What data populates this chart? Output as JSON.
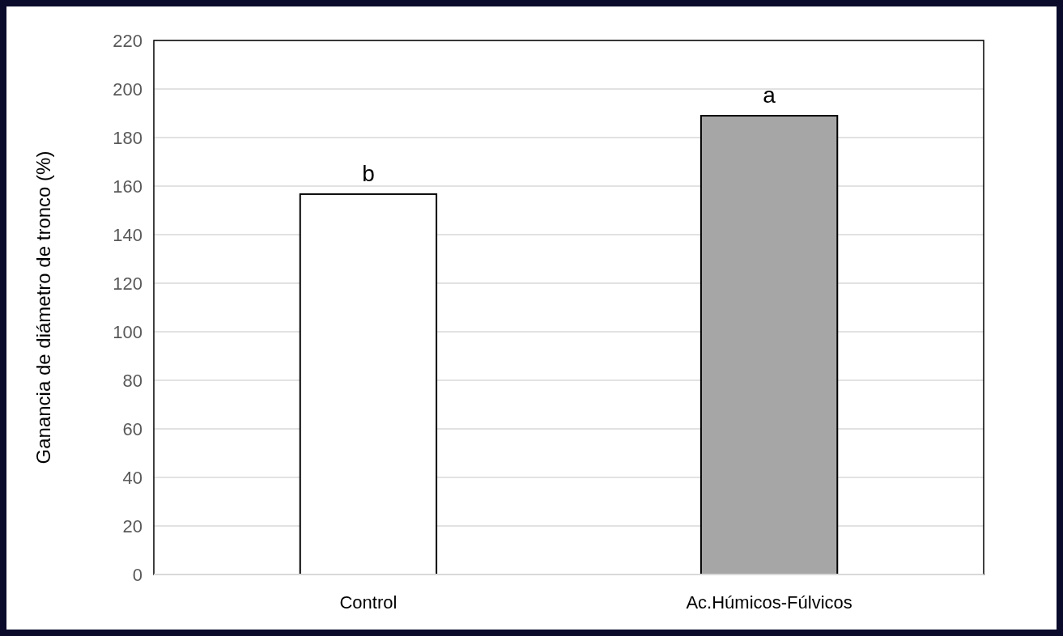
{
  "chart_data": {
    "type": "bar",
    "ylabel": "Ganancia de diámetro de tronco (%)",
    "categories": [
      "Control",
      "Ac.Húmicos-Fúlvicos"
    ],
    "values": [
      156.7,
      189
    ],
    "colors": [
      "#ffffff",
      "#a6a6a6"
    ],
    "ylim": [
      0,
      220
    ],
    "yticks": [
      0,
      20,
      40,
      60,
      80,
      100,
      120,
      140,
      160,
      180,
      200,
      220
    ],
    "grid": "y",
    "annotations": [
      {
        "text": "b",
        "x": "Control",
        "y": 156.7
      },
      {
        "text": "a",
        "x": "Ac.Húmicos-Fúlvicos",
        "y": 189
      }
    ]
  }
}
